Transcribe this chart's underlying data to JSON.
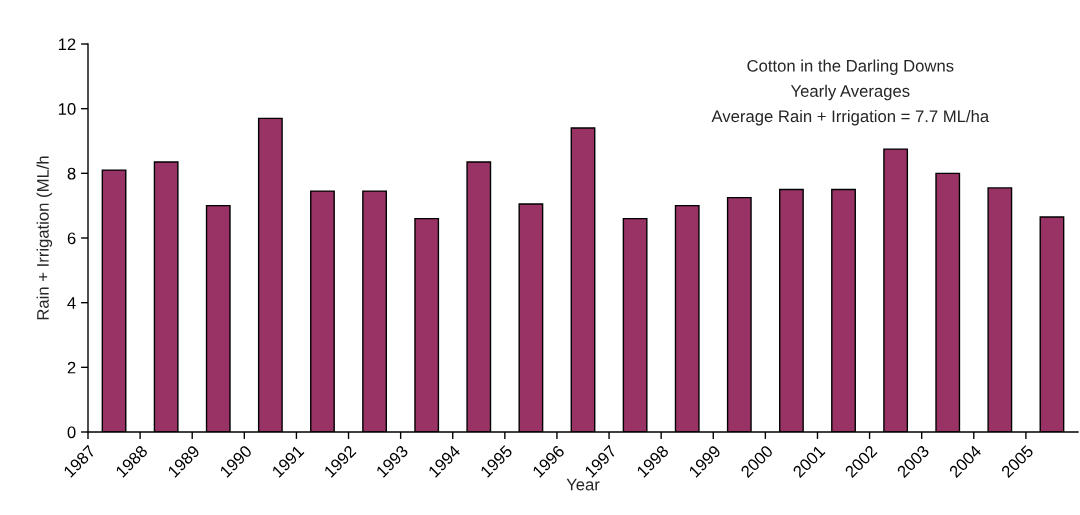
{
  "chart_data": {
    "type": "bar",
    "title": "Cotton in the Darling Downs",
    "subtitle": "Yearly Averages",
    "annotations": [
      "Average Rain + Irrigation = 7.7 ML/ha"
    ],
    "xlabel": "Year",
    "ylabel": "Rain + Irrigation (ML/h",
    "categories": [
      "1987",
      "1988",
      "1989",
      "1990",
      "1991",
      "1992",
      "1993",
      "1994",
      "1995",
      "1996",
      "1997",
      "1998",
      "1999",
      "2000",
      "2001",
      "2002",
      "2003",
      "2004",
      "2005"
    ],
    "values": [
      8.1,
      8.35,
      7.0,
      9.7,
      7.45,
      7.45,
      6.6,
      8.35,
      7.05,
      9.4,
      6.6,
      7.0,
      7.25,
      7.5,
      7.5,
      8.75,
      8.0,
      7.55,
      6.65
    ],
    "color": "#993366",
    "ylim": [
      0,
      12
    ],
    "yticks": [
      0,
      2,
      4,
      6,
      8,
      10,
      12
    ],
    "grid": false,
    "legend": false
  }
}
